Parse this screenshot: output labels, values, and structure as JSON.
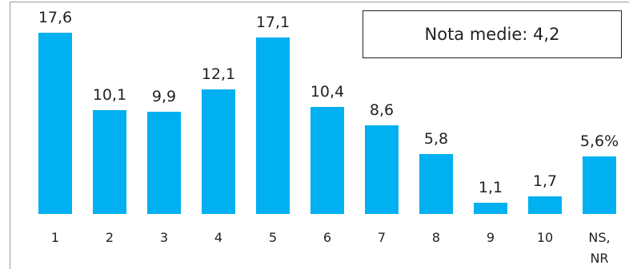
{
  "chart_data": {
    "type": "bar",
    "categories": [
      "1",
      "2",
      "3",
      "4",
      "5",
      "6",
      "7",
      "8",
      "9",
      "10",
      "NS, NR"
    ],
    "values": [
      17.6,
      10.1,
      9.9,
      12.1,
      17.1,
      10.4,
      8.6,
      5.8,
      1.1,
      1.7,
      5.6
    ],
    "value_labels": [
      "17,6",
      "10,1",
      "9,9",
      "12,1",
      "17,1",
      "10,4",
      "8,6",
      "5,8",
      "1,1",
      "1,7",
      "5,6%"
    ],
    "color": "#00b0f0",
    "annotation": "Nota medie: 4,2"
  }
}
